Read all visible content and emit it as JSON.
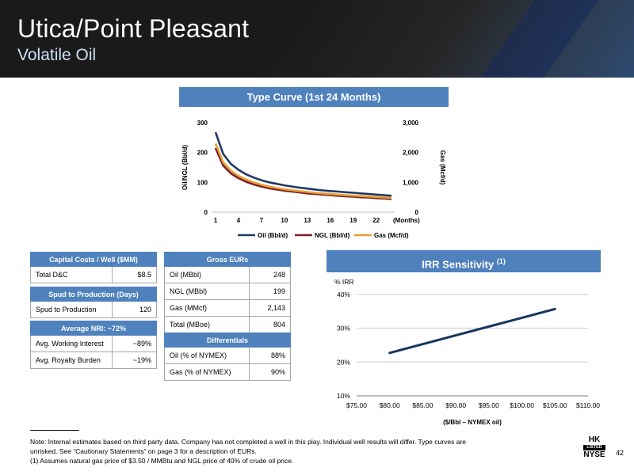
{
  "header": {
    "title": "Utica/Point Pleasant",
    "subtitle": "Volatile Oil"
  },
  "type_curve_title": "Type Curve (1st 24 Months)",
  "irr_title": "IRR Sensitivity",
  "irr_title_note": "(1)",
  "capital_costs": {
    "header": "Capital Costs / Well ($MM)",
    "rows": [
      {
        "label": "Total D&C",
        "value": "$8.5"
      }
    ]
  },
  "spud": {
    "header": "Spud to Production (Days)",
    "rows": [
      {
        "label": "Spud to Production",
        "value": "120"
      }
    ]
  },
  "nri": {
    "header": "Average NRI: ~72%",
    "rows": [
      {
        "label": "Avg. Working Interest",
        "value": "~89%"
      },
      {
        "label": "Avg. Royalty Burden",
        "value": "~19%"
      }
    ]
  },
  "gross_eurs": {
    "header": "Gross EURs",
    "rows": [
      {
        "label": "Oil (MBbl)",
        "value": "248"
      },
      {
        "label": "NGL (MBbl)",
        "value": "199"
      },
      {
        "label": "Gas (MMcf)",
        "value": "2,143"
      },
      {
        "label": "Total (MBoe)",
        "value": "804"
      }
    ]
  },
  "differentials": {
    "header": "Differentials",
    "rows": [
      {
        "label": "Oil (% of NYMEX)",
        "value": "88%"
      },
      {
        "label": "Gas (% of NYMEX)",
        "value": "90%"
      }
    ]
  },
  "footnote": {
    "line1": "Note: Internal estimates based on third party data. Company has not completed a well in this play. Individual well results will differ. Type curves are",
    "line2": "unrisked.  See “Cautionary Statements” on page 3 for a description of EURs.",
    "line3": "(1) Assumes natural gas price of $3.50 / MMBtu and NGL price of 40% of crude oil price."
  },
  "logo": {
    "top": "HK",
    "middle": "LISTED",
    "bottom": "NYSE"
  },
  "page_number": "42",
  "colors": {
    "header_bar": "#4f81bd",
    "oil": "#1f3864",
    "ngl": "#7b1f2b",
    "gas": "#e8a033",
    "irr_line": "#17365d"
  },
  "chart_data": [
    {
      "type": "line",
      "title": "Type Curve (1st 24 Months)",
      "xlabel": "(Months)",
      "ylabel": "Oil/NGL (Bbl/d)",
      "y2label": "Gas (Mcf/d)",
      "x": [
        1,
        2,
        3,
        4,
        5,
        6,
        7,
        8,
        9,
        10,
        11,
        12,
        13,
        14,
        15,
        16,
        17,
        18,
        19,
        20,
        21,
        22,
        23,
        24
      ],
      "x_ticks": [
        "1",
        "4",
        "7",
        "10",
        "13",
        "16",
        "19",
        "22"
      ],
      "y_ticks": [
        "0",
        "100",
        "200",
        "300"
      ],
      "y2_ticks": [
        "0",
        "1,000",
        "2,000",
        "3,000"
      ],
      "ylim": [
        0,
        300
      ],
      "y2lim": [
        0,
        3000
      ],
      "grid": false,
      "legend": "bottom",
      "series": [
        {
          "name": "Oil (Bbl/d)",
          "axis": "left",
          "color": "#1f3864",
          "values": [
            268,
            195,
            162,
            142,
            127,
            116,
            107,
            100,
            95,
            90,
            86,
            82,
            79,
            76,
            73,
            71,
            69,
            67,
            65,
            63,
            61,
            59,
            57,
            55
          ]
        },
        {
          "name": "NGL (Bbl/d)",
          "axis": "left",
          "color": "#7b1f2b",
          "values": [
            215,
            156,
            130,
            114,
            102,
            93,
            86,
            80,
            76,
            72,
            69,
            66,
            63,
            61,
            59,
            57,
            55,
            53,
            52,
            50,
            49,
            47,
            46,
            44
          ]
        },
        {
          "name": "Gas (Mcf/d)",
          "axis": "right",
          "color": "#e8a033",
          "values": [
            2300,
            1670,
            1390,
            1215,
            1090,
            995,
            918,
            858,
            810,
            770,
            735,
            705,
            676,
            651,
            628,
            608,
            589,
            572,
            556,
            540,
            525,
            510,
            496,
            482
          ]
        }
      ]
    },
    {
      "type": "line",
      "title": "IRR Sensitivity",
      "xlabel": "($/Bbl – NYMEX oil)",
      "ylabel": "% IRR",
      "categories": [
        "$75.00",
        "$80.00",
        "$85.00",
        "$90.00",
        "$95.00",
        "$100.00",
        "$105.00",
        "$110.00"
      ],
      "y_ticks": [
        "10%",
        "20%",
        "30%",
        "40%"
      ],
      "ylim": [
        10,
        40
      ],
      "grid": true,
      "legend": "none",
      "series": [
        {
          "values": [
            null,
            22.7,
            25.3,
            27.9,
            30.5,
            33.1,
            35.7,
            null
          ]
        }
      ]
    }
  ]
}
